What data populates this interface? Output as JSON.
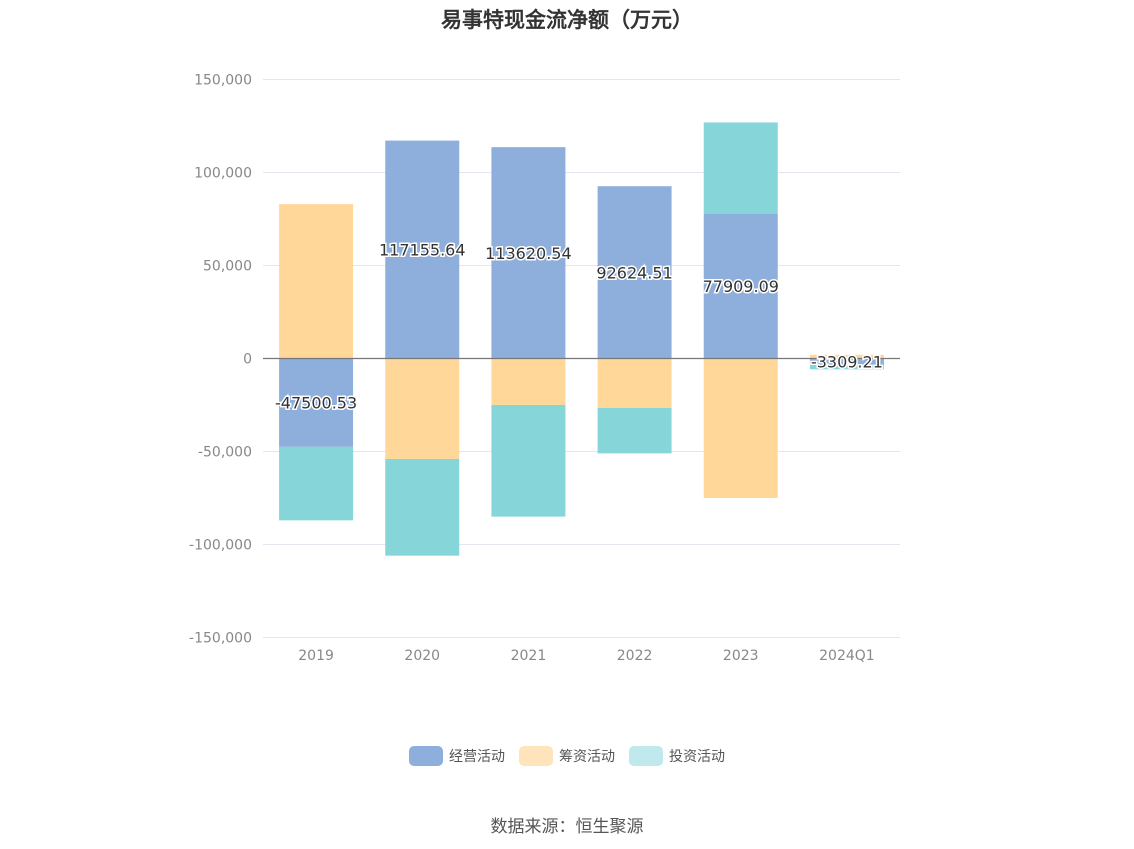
{
  "chart_data": {
    "type": "bar",
    "title": "易事特现金流净额（万元）",
    "categories": [
      "2019",
      "2020",
      "2021",
      "2022",
      "2023",
      "2024Q1"
    ],
    "series": [
      {
        "name": "经营活动",
        "color": "#8eaedb",
        "values": [
          -47500.53,
          117155.64,
          113620.54,
          92624.51,
          77909.09,
          -3309.21
        ]
      },
      {
        "name": "筹资活动",
        "color": "#ffd899",
        "values": [
          83000,
          -54000,
          -25000,
          -26500,
          -75000,
          2000
        ]
      },
      {
        "name": "投资活动",
        "color": "#86d5d9",
        "values": [
          -39500,
          -52000,
          -60000,
          -24500,
          49000,
          -2500
        ]
      }
    ],
    "data_labels": [
      "-47500.53",
      "117155.64",
      "113620.54",
      "92624.51",
      "77909.09",
      "-3309.21"
    ],
    "ylim": [
      -150000,
      150000
    ],
    "yticks": [
      150000,
      100000,
      50000,
      0,
      -50000,
      -100000,
      -150000
    ],
    "ytick_labels": [
      "150,000",
      "100,000",
      "50,000",
      "0",
      "-50,000",
      "-100,000",
      "-150,000"
    ],
    "stacked": true,
    "grid": true,
    "legend_position": "bottom",
    "legend_colors": [
      "#8eaedb",
      "#ffe3ba",
      "#bfe9ec"
    ]
  },
  "source": "数据来源：恒生聚源"
}
